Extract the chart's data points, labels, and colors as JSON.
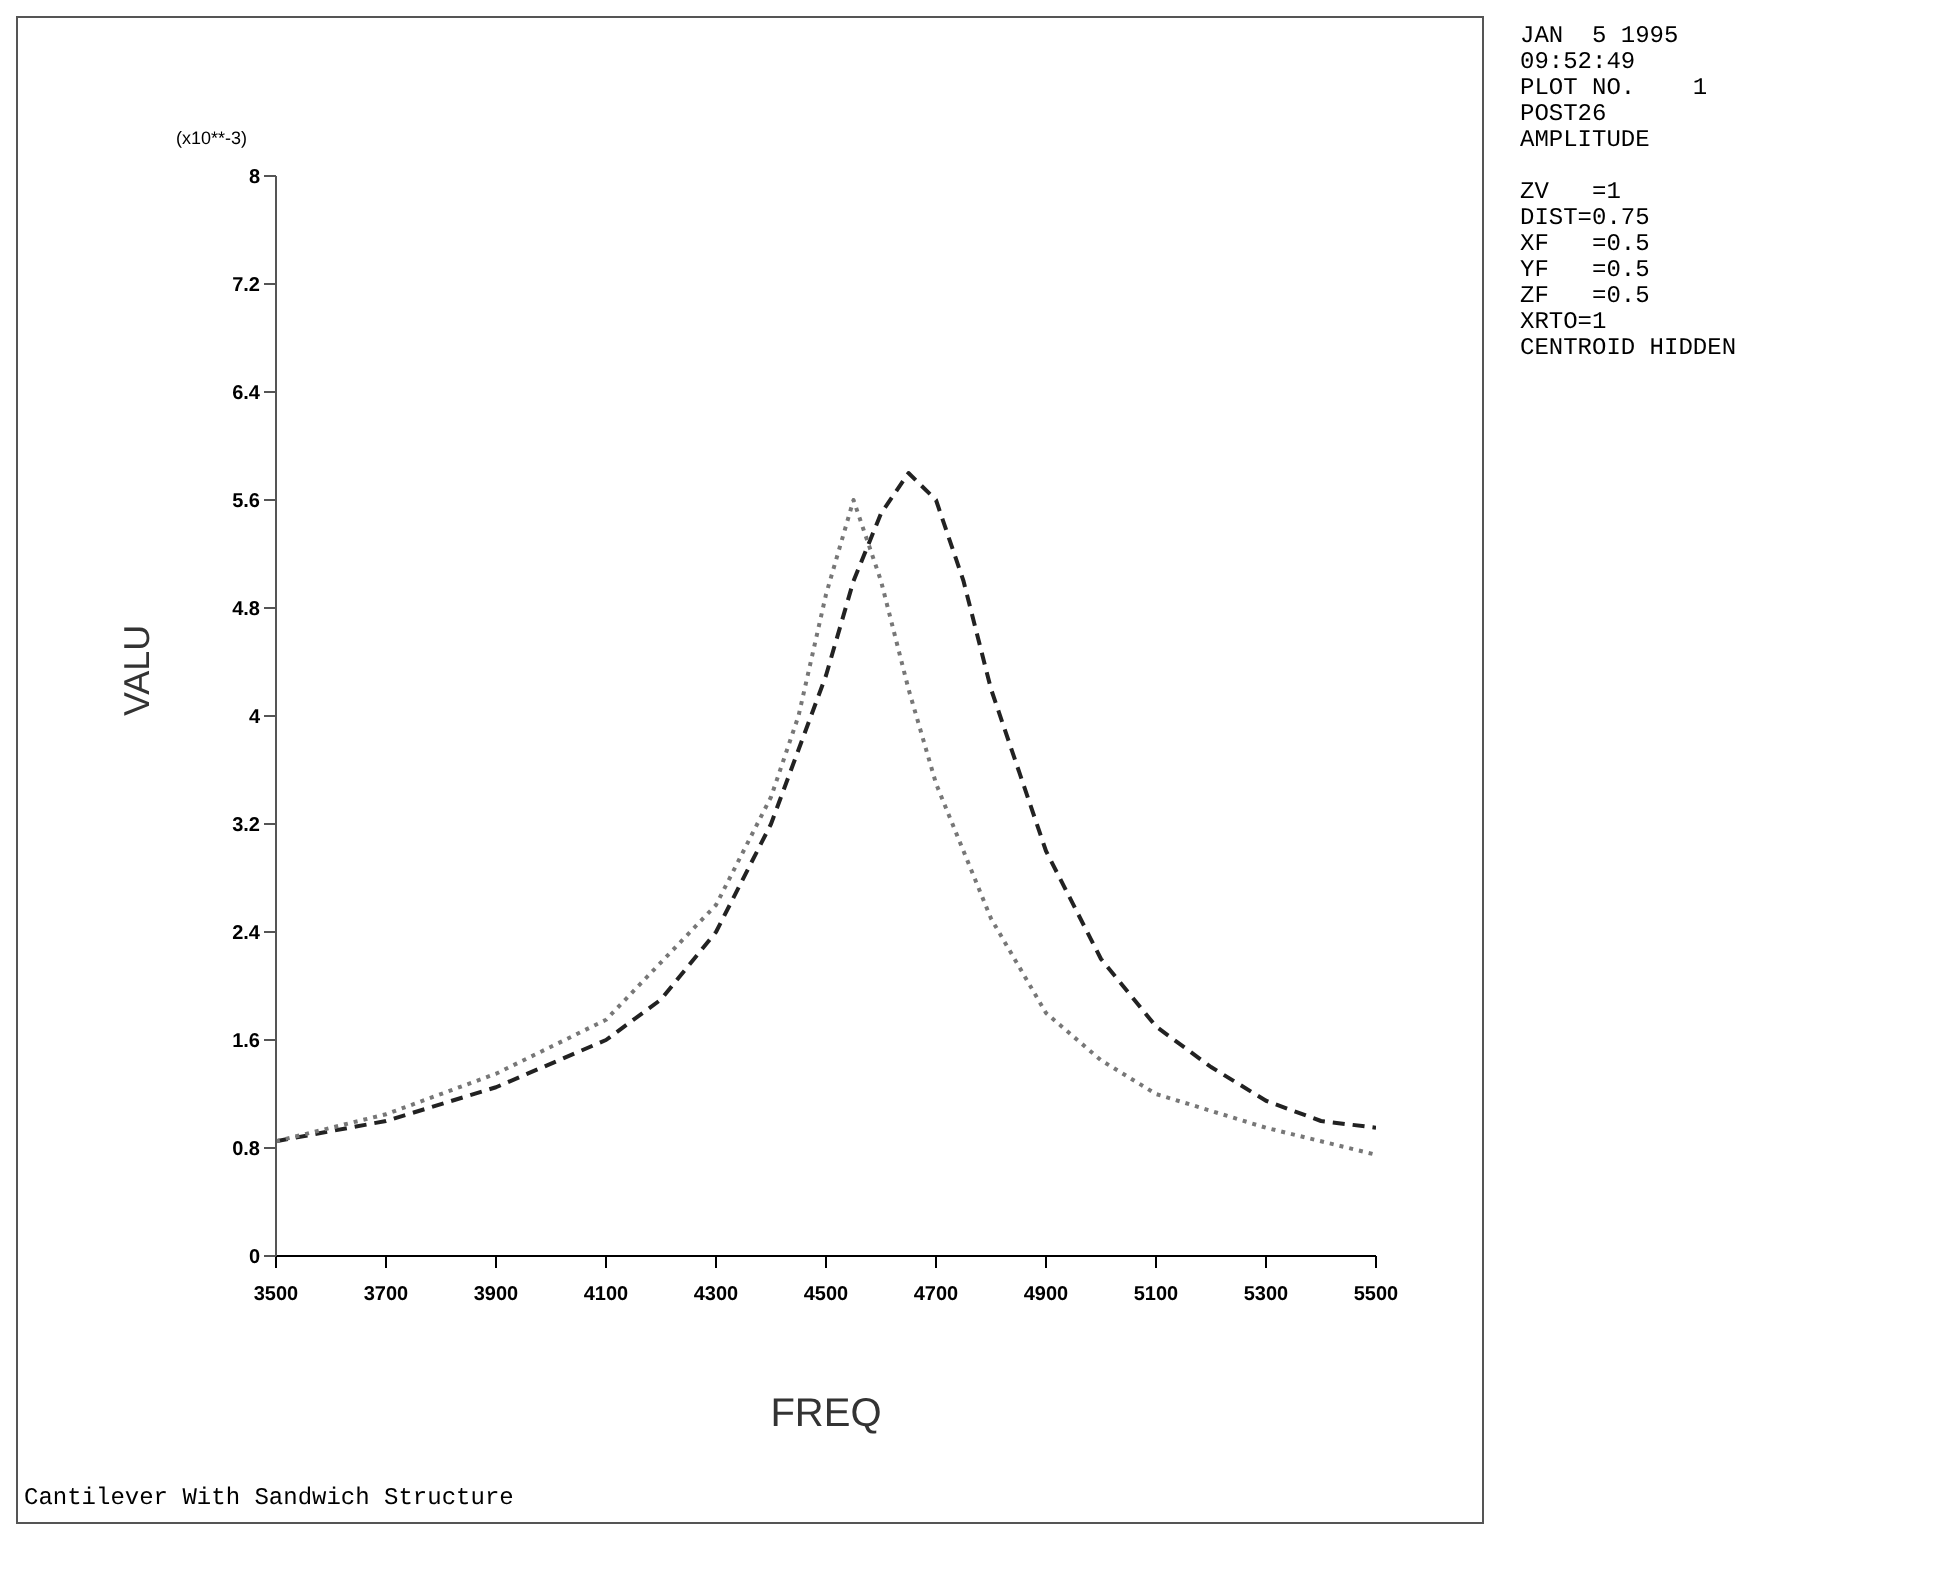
{
  "chart_data": {
    "type": "line",
    "xlabel": "FREQ",
    "ylabel": "VALU",
    "marker": "none",
    "grid": false,
    "legend": false,
    "xlim": [
      3500,
      5500
    ],
    "xticks": [
      3500,
      3700,
      3900,
      4100,
      4300,
      4500,
      4700,
      4900,
      5100,
      5300,
      5500
    ],
    "ylim": [
      0,
      8
    ],
    "yticks": [
      0,
      0.8,
      1.6,
      2.4,
      3.2,
      4,
      4.8,
      5.6,
      6.4,
      7.2,
      8
    ],
    "series": [
      {
        "color": "#222222",
        "line_style": "dashed",
        "x": [
          3500,
          3700,
          3900,
          4100,
          4200,
          4300,
          4400,
          4500,
          4550,
          4600,
          4650,
          4700,
          4750,
          4800,
          4900,
          5000,
          5100,
          5200,
          5300,
          5400,
          5500
        ],
        "values": [
          0.85,
          1.0,
          1.25,
          1.6,
          1.9,
          2.4,
          3.2,
          4.3,
          5.0,
          5.5,
          5.8,
          5.6,
          5.0,
          4.2,
          3.0,
          2.2,
          1.7,
          1.4,
          1.15,
          1.0,
          0.95
        ]
      },
      {
        "color": "#777777",
        "line_style": "dotted",
        "x": [
          3500,
          3700,
          3900,
          4100,
          4300,
          4400,
          4450,
          4500,
          4550,
          4600,
          4650,
          4700,
          4800,
          4900,
          5000,
          5100,
          5300,
          5500
        ],
        "values": [
          0.85,
          1.05,
          1.35,
          1.75,
          2.6,
          3.4,
          4.0,
          4.9,
          5.6,
          5.0,
          4.2,
          3.5,
          2.5,
          1.8,
          1.45,
          1.2,
          0.95,
          0.75
        ]
      }
    ],
    "annotations": [
      "(x10**-3)",
      "Cantilever With Sandwich Structure",
      "JAN  5 1995",
      "09:52:49",
      "PLOT NO.    1",
      "POST26",
      "AMPLITUDE",
      "ZV   =1",
      "DIST=0.75",
      "XF   =0.5",
      "YF   =0.5",
      "ZF   =0.5",
      "XRTO=1",
      "CENTROID HIDDEN"
    ]
  }
}
